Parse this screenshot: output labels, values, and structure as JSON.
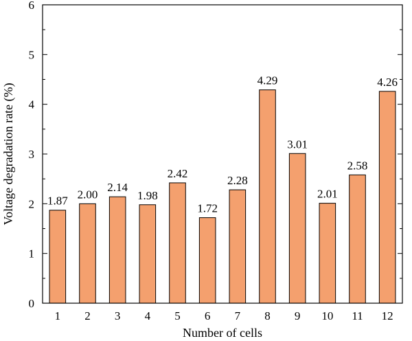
{
  "chart_data": {
    "type": "bar",
    "title": "",
    "xlabel": "Number of cells",
    "ylabel": "Voltage degradation rate (%)",
    "categories": [
      "1",
      "2",
      "3",
      "4",
      "5",
      "6",
      "7",
      "8",
      "9",
      "10",
      "11",
      "12"
    ],
    "values": [
      1.87,
      2.0,
      2.14,
      1.98,
      2.42,
      1.72,
      2.28,
      4.29,
      3.01,
      2.01,
      2.58,
      4.26
    ],
    "value_labels": [
      "1.87",
      "2.00",
      "2.14",
      "1.98",
      "2.42",
      "1.72",
      "2.28",
      "4.29",
      "3.01",
      "2.01",
      "2.58",
      "4.26"
    ],
    "ylim": [
      0,
      6
    ],
    "yticks": [
      "0",
      "1",
      "2",
      "3",
      "4",
      "5",
      "6"
    ],
    "grid": false,
    "legend": "none",
    "colors": {
      "bar_fill": "#F4A06E",
      "bar_edge": "#000000",
      "axis": "#000000"
    }
  }
}
